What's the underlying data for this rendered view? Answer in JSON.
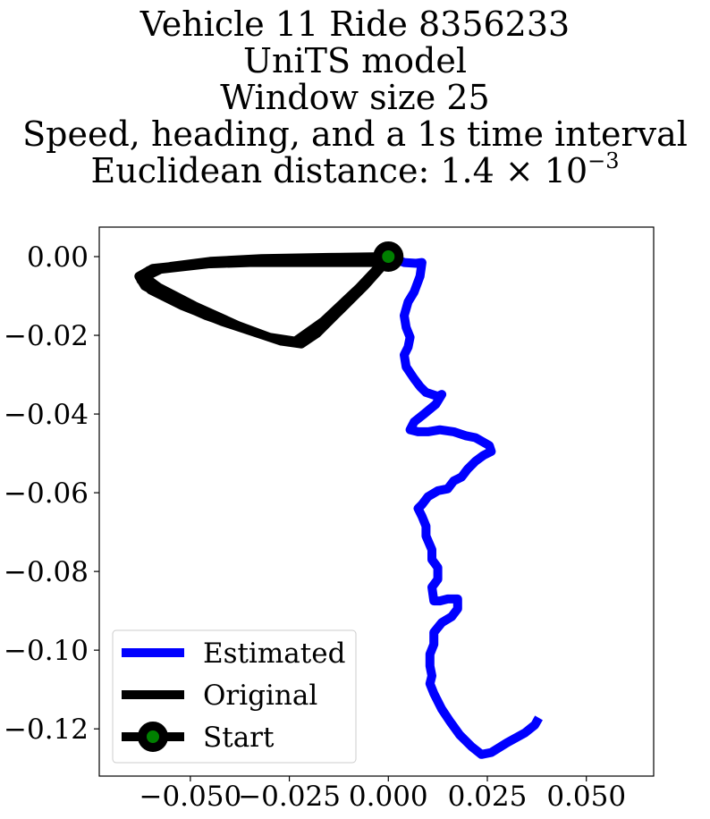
{
  "title": {
    "line1": "Vehicle 11 Ride 8356233",
    "line2": "UniTS model",
    "line3": "Window size 25",
    "line4": "Speed, heading, and a 1s time interval",
    "line5_prefix": "Euclidean distance: 1.4 × 10",
    "line5_exp": "−3"
  },
  "chart_data": {
    "type": "line",
    "xlim": [
      -0.073,
      0.067
    ],
    "ylim": [
      -0.132,
      0.0075
    ],
    "x_ticks": [
      -0.05,
      -0.025,
      0.0,
      0.025,
      0.05
    ],
    "x_tick_labels": [
      "−0.050",
      "−0.025",
      "0.000",
      "0.025",
      "0.050"
    ],
    "y_ticks": [
      0.0,
      -0.02,
      -0.04,
      -0.06,
      -0.08,
      -0.1,
      -0.12
    ],
    "y_tick_labels": [
      "0.00",
      "−0.02",
      "−0.04",
      "−0.06",
      "−0.08",
      "−0.10",
      "−0.12"
    ],
    "grid": false,
    "legend_position": "lower-left",
    "series": [
      {
        "name": "Estimated",
        "color": "#0000ff",
        "points": [
          [
            0.0,
            0.0
          ],
          [
            0.004,
            -0.0015
          ],
          [
            0.007,
            -0.0017
          ],
          [
            0.0085,
            -0.0015
          ],
          [
            0.008,
            -0.005
          ],
          [
            0.0065,
            -0.009
          ],
          [
            0.005,
            -0.0115
          ],
          [
            0.004,
            -0.015
          ],
          [
            0.0045,
            -0.018
          ],
          [
            0.0055,
            -0.0205
          ],
          [
            0.005,
            -0.023
          ],
          [
            0.004,
            -0.025
          ],
          [
            0.0045,
            -0.028
          ],
          [
            0.0065,
            -0.031
          ],
          [
            0.008,
            -0.033
          ],
          [
            0.0095,
            -0.0345
          ],
          [
            0.0125,
            -0.0355
          ],
          [
            0.0135,
            -0.035
          ],
          [
            0.012,
            -0.0375
          ],
          [
            0.009,
            -0.04
          ],
          [
            0.0065,
            -0.042
          ],
          [
            0.0055,
            -0.044
          ],
          [
            0.0075,
            -0.0445
          ],
          [
            0.01,
            -0.0445
          ],
          [
            0.013,
            -0.044
          ],
          [
            0.0165,
            -0.0445
          ],
          [
            0.0195,
            -0.0455
          ],
          [
            0.022,
            -0.046
          ],
          [
            0.0255,
            -0.048
          ],
          [
            0.026,
            -0.0495
          ],
          [
            0.024,
            -0.0505
          ],
          [
            0.022,
            -0.052
          ],
          [
            0.02,
            -0.054
          ],
          [
            0.0185,
            -0.056
          ],
          [
            0.0165,
            -0.057
          ],
          [
            0.015,
            -0.059
          ],
          [
            0.0125,
            -0.0595
          ],
          [
            0.01,
            -0.061
          ],
          [
            0.0085,
            -0.063
          ],
          [
            0.0075,
            -0.064
          ],
          [
            0.0085,
            -0.066
          ],
          [
            0.0095,
            -0.0685
          ],
          [
            0.0095,
            -0.071
          ],
          [
            0.011,
            -0.0745
          ],
          [
            0.011,
            -0.077
          ],
          [
            0.0125,
            -0.079
          ],
          [
            0.0125,
            -0.082
          ],
          [
            0.011,
            -0.084
          ],
          [
            0.0115,
            -0.0875
          ],
          [
            0.013,
            -0.0875
          ],
          [
            0.015,
            -0.087
          ],
          [
            0.0175,
            -0.087
          ],
          [
            0.0175,
            -0.0895
          ],
          [
            0.016,
            -0.0915
          ],
          [
            0.0135,
            -0.093
          ],
          [
            0.0115,
            -0.0955
          ],
          [
            0.0115,
            -0.0985
          ],
          [
            0.0105,
            -0.101
          ],
          [
            0.0105,
            -0.104
          ],
          [
            0.011,
            -0.1065
          ],
          [
            0.0105,
            -0.1085
          ],
          [
            0.0115,
            -0.111
          ],
          [
            0.0135,
            -0.115
          ],
          [
            0.0155,
            -0.118
          ],
          [
            0.018,
            -0.1215
          ],
          [
            0.021,
            -0.1245
          ],
          [
            0.0235,
            -0.1265
          ],
          [
            0.026,
            -0.126
          ],
          [
            0.03,
            -0.1235
          ],
          [
            0.0345,
            -0.121
          ],
          [
            0.037,
            -0.119
          ],
          [
            0.038,
            -0.1172
          ]
        ]
      },
      {
        "name": "Original",
        "color": "#000000",
        "points": [
          [
            0.0,
            0.0
          ],
          [
            -0.015,
            -0.0002
          ],
          [
            -0.032,
            -0.0005
          ],
          [
            -0.045,
            -0.0012
          ],
          [
            -0.055,
            -0.0025
          ],
          [
            -0.0605,
            -0.0035
          ],
          [
            -0.0625,
            -0.006
          ],
          [
            -0.06,
            -0.0085
          ],
          [
            -0.052,
            -0.0125
          ],
          [
            -0.042,
            -0.0165
          ],
          [
            -0.033,
            -0.0195
          ],
          [
            -0.027,
            -0.0215
          ],
          [
            -0.022,
            -0.0222
          ],
          [
            -0.018,
            -0.0195
          ],
          [
            -0.012,
            -0.0135
          ],
          [
            -0.006,
            -0.0075
          ],
          [
            -0.002,
            -0.003
          ],
          [
            0.0,
            0.0
          ],
          [
            -0.004,
            -0.0015
          ],
          [
            -0.018,
            -0.0015
          ],
          [
            -0.035,
            -0.0015
          ],
          [
            -0.05,
            -0.002
          ],
          [
            -0.0595,
            -0.003
          ],
          [
            -0.063,
            -0.005
          ],
          [
            -0.0615,
            -0.0075
          ],
          [
            -0.055,
            -0.011
          ],
          [
            -0.046,
            -0.015
          ],
          [
            -0.036,
            -0.0185
          ],
          [
            -0.0285,
            -0.021
          ],
          [
            -0.0225,
            -0.022
          ],
          [
            -0.0195,
            -0.0205
          ],
          [
            -0.0145,
            -0.0155
          ],
          [
            -0.0085,
            -0.0095
          ],
          [
            -0.0035,
            -0.004
          ],
          [
            0.0,
            0.0
          ],
          [
            -0.01,
            -0.0005
          ],
          [
            -0.028,
            -0.001
          ],
          [
            -0.045,
            -0.0018
          ],
          [
            -0.0575,
            -0.0032
          ],
          [
            -0.0615,
            -0.0052
          ],
          [
            -0.058,
            -0.0078
          ],
          [
            -0.049,
            -0.0125
          ],
          [
            -0.038,
            -0.0175
          ],
          [
            -0.03,
            -0.0205
          ],
          [
            -0.0235,
            -0.0215
          ],
          [
            -0.0165,
            -0.0165
          ],
          [
            -0.0075,
            -0.008
          ],
          [
            0.0,
            0.0
          ]
        ]
      }
    ],
    "start": {
      "name": "Start",
      "x": 0.0,
      "y": 0.0,
      "marker_color": "#008000",
      "edge_color": "#000000"
    }
  }
}
